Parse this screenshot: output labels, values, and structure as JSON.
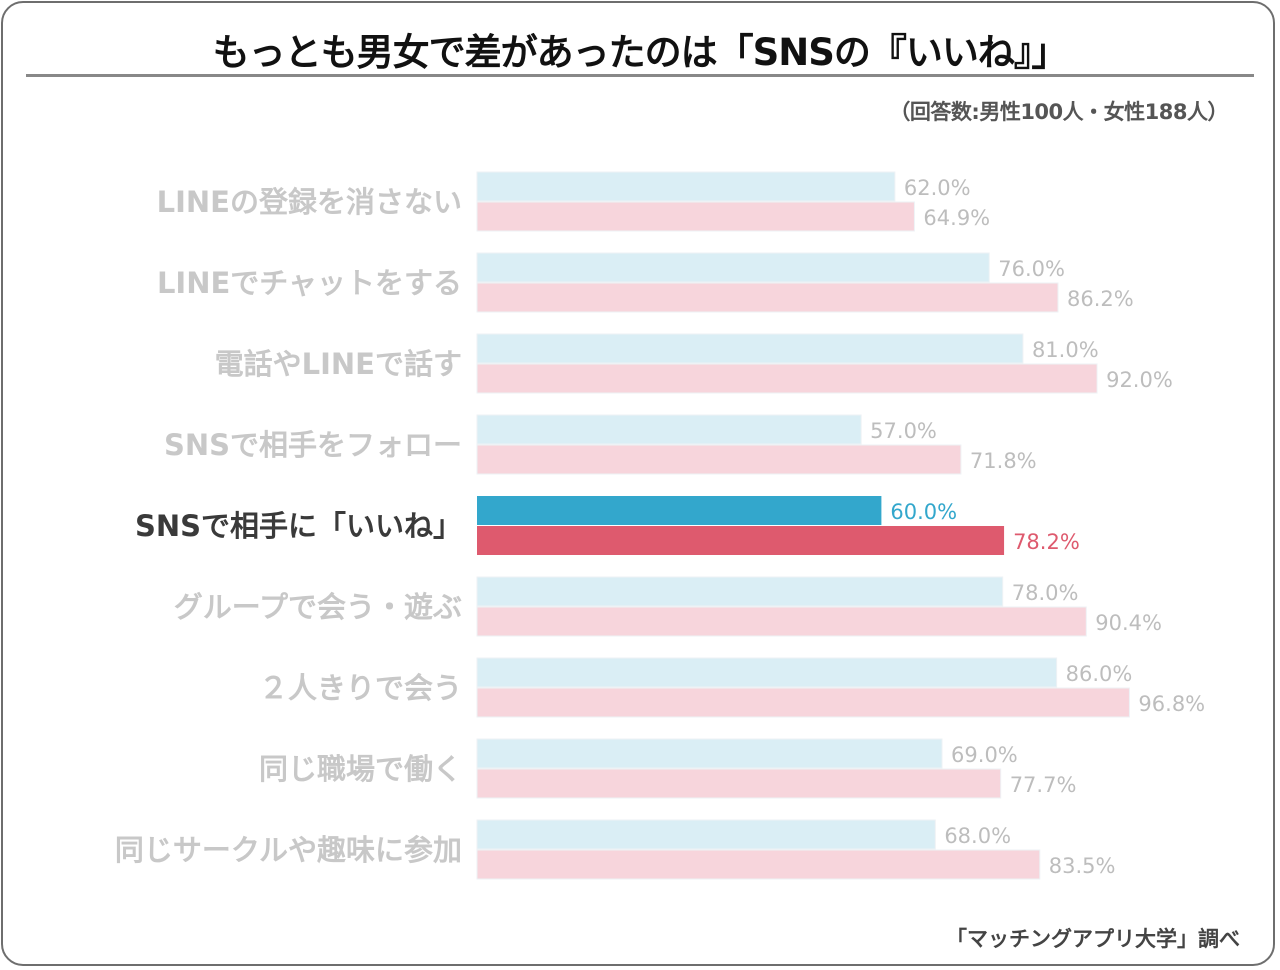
{
  "header": {
    "title": "もっとも男女で差があったのは「SNSの『いいね』」",
    "note": "（回答数:男性100人・女性188人）"
  },
  "footer": {
    "source": "「マッチングアプリ大学」調べ"
  },
  "colors": {
    "male_muted": "#daeef5",
    "female_muted": "#f7d5dc",
    "male_highlight": "#33a7cc",
    "female_highlight": "#de5a6e",
    "label_muted": "#c8c8c8",
    "label_highlight": "#3a3a3a",
    "value_muted": "#bdbdbd"
  },
  "chart_data": {
    "type": "bar",
    "orientation": "horizontal",
    "title": "もっとも男女で差があったのは「SNSの『いいね』」",
    "xlabel": "",
    "ylabel": "",
    "xlim": [
      0,
      100
    ],
    "unit": "%",
    "grid": false,
    "highlight_index": 4,
    "categories": [
      "LINEの登録を消さない",
      "LINEでチャットをする",
      "電話やLINEで話す",
      "SNSで相手をフォロー",
      "SNSで相手に「いいね」",
      "グループで会う・遊ぶ",
      "２人きりで会う",
      "同じ職場で働く",
      "同じサークルや趣味に参加"
    ],
    "series": [
      {
        "name": "男性",
        "values": [
          62.0,
          76.0,
          81.0,
          57.0,
          60.0,
          78.0,
          86.0,
          69.0,
          68.0
        ],
        "labels": [
          "62.0%",
          "76.0%",
          "81.0%",
          "57.0%",
          "60.0%",
          "78.0%",
          "86.0%",
          "69.0%",
          "68.0%"
        ]
      },
      {
        "name": "女性",
        "values": [
          64.9,
          86.2,
          92.0,
          71.8,
          78.2,
          90.4,
          96.8,
          77.7,
          83.5
        ],
        "labels": [
          "64.9%",
          "86.2%",
          "92.0%",
          "71.8%",
          "78.2%",
          "90.4%",
          "96.8%",
          "77.7%",
          "83.5%"
        ]
      }
    ]
  }
}
